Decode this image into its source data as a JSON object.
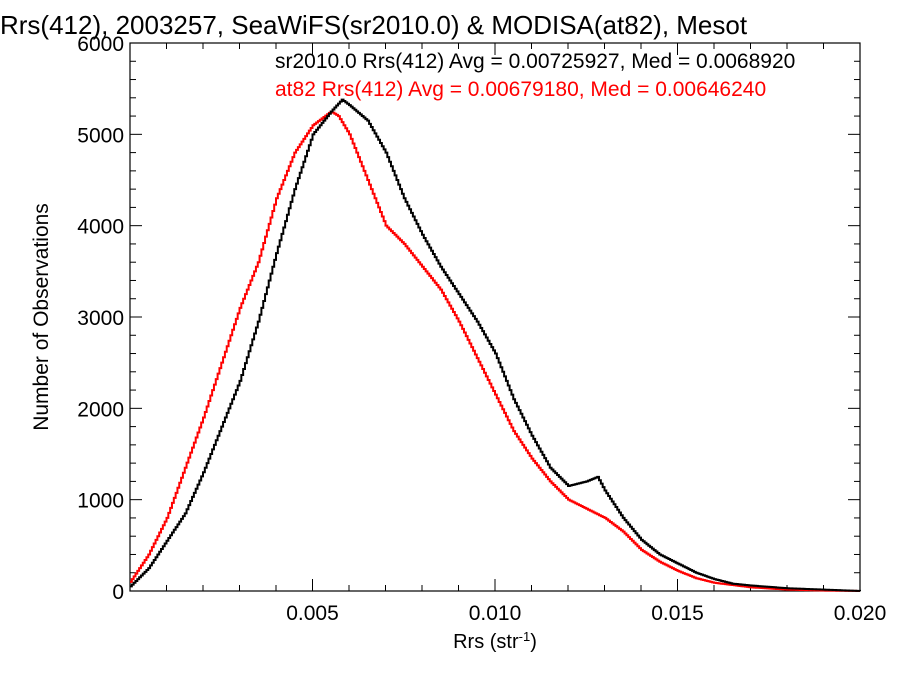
{
  "chart_data": {
    "type": "line",
    "title": "Rrs(412), 2003257, SeaWiFS(sr2010.0) & MODISA(at82), Mesot",
    "xlabel": "Rrs (str⁻¹)",
    "ylabel": "Number of Observations",
    "xlim": [
      0.0,
      0.02
    ],
    "ylim": [
      0,
      6000
    ],
    "xticks": [
      0.005,
      0.01,
      0.015,
      0.02
    ],
    "xtick_labels": [
      "0.005",
      "0.010",
      "0.015",
      "0.020"
    ],
    "yticks": [
      0,
      1000,
      2000,
      3000,
      4000,
      5000,
      6000
    ],
    "ytick_labels": [
      "0",
      "1000",
      "2000",
      "3000",
      "4000",
      "5000",
      "6000"
    ],
    "grid": false,
    "legend_placement": "top-right",
    "annotations": [
      {
        "text": "sr2010.0 Rrs(412) Avg = 0.00725927, Med = 0.0068920",
        "color": "#000000"
      },
      {
        "text": "at82 Rrs(412) Avg = 0.00679180, Med = 0.00646240",
        "color": "#ff0000"
      }
    ],
    "series": [
      {
        "color": "#000000",
        "x": [
          0.0,
          0.0005,
          0.001,
          0.0015,
          0.002,
          0.0025,
          0.003,
          0.0035,
          0.004,
          0.0045,
          0.005,
          0.0055,
          0.0058,
          0.006,
          0.0065,
          0.007,
          0.0075,
          0.008,
          0.0085,
          0.009,
          0.0095,
          0.01,
          0.0105,
          0.011,
          0.0115,
          0.012,
          0.0125,
          0.0128,
          0.013,
          0.0135,
          0.014,
          0.0145,
          0.015,
          0.0155,
          0.016,
          0.0165,
          0.017,
          0.018,
          0.019,
          0.02
        ],
        "values": [
          50,
          250,
          550,
          850,
          1300,
          1800,
          2300,
          2950,
          3700,
          4400,
          5000,
          5250,
          5380,
          5320,
          5150,
          4800,
          4300,
          3900,
          3550,
          3250,
          2950,
          2600,
          2100,
          1700,
          1350,
          1150,
          1200,
          1250,
          1100,
          800,
          560,
          400,
          300,
          200,
          130,
          80,
          60,
          30,
          15,
          0
        ]
      },
      {
        "color": "#ff0000",
        "x": [
          0.0,
          0.0005,
          0.001,
          0.0015,
          0.002,
          0.0025,
          0.003,
          0.0035,
          0.004,
          0.0045,
          0.005,
          0.0055,
          0.0057,
          0.006,
          0.0065,
          0.007,
          0.0075,
          0.008,
          0.0085,
          0.009,
          0.0095,
          0.01,
          0.0105,
          0.011,
          0.0115,
          0.012,
          0.0125,
          0.013,
          0.0135,
          0.014,
          0.0145,
          0.015,
          0.0155,
          0.016,
          0.017,
          0.018,
          0.019,
          0.02
        ],
        "values": [
          100,
          400,
          800,
          1350,
          1900,
          2500,
          3100,
          3600,
          4300,
          4800,
          5100,
          5250,
          5200,
          5000,
          4500,
          4000,
          3800,
          3550,
          3300,
          2950,
          2550,
          2150,
          1750,
          1450,
          1200,
          1000,
          900,
          800,
          650,
          450,
          320,
          220,
          140,
          90,
          40,
          15,
          5,
          0
        ]
      }
    ]
  }
}
